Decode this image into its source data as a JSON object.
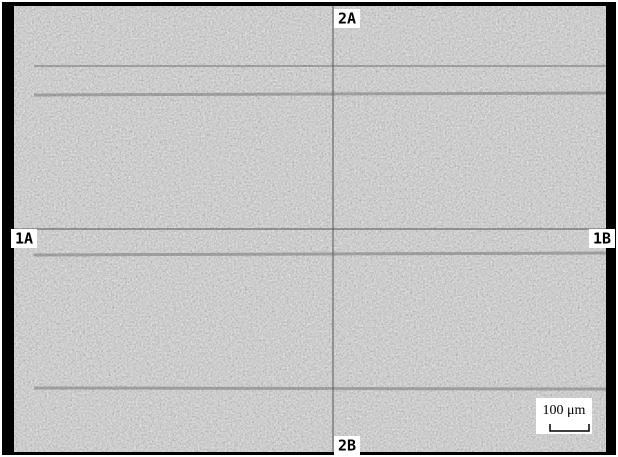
{
  "labels": {
    "top": "2A",
    "bottom": "2B",
    "left": "1A",
    "right": "1B"
  },
  "scale_bar": {
    "label": "100 μm"
  }
}
